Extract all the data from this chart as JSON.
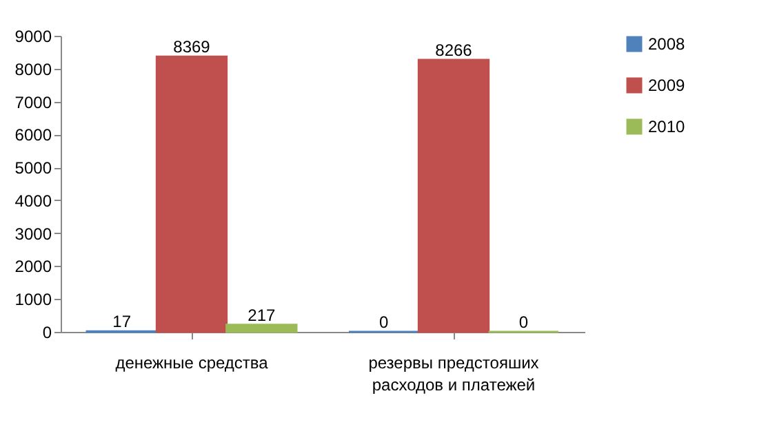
{
  "chart_data": {
    "type": "bar",
    "categories": [
      "денежные средства",
      "резервы предстояших расходов и платежей"
    ],
    "series": [
      {
        "name": "2008",
        "color": "#4f81bd",
        "values": [
          17,
          0
        ]
      },
      {
        "name": "2009",
        "color": "#c0504d",
        "values": [
          8369,
          8266
        ]
      },
      {
        "name": "2010",
        "color": "#9bbb59",
        "values": [
          217,
          0
        ]
      }
    ],
    "ylim": [
      0,
      9000
    ],
    "yticks": [
      0,
      1000,
      2000,
      3000,
      4000,
      5000,
      6000,
      7000,
      8000,
      9000
    ],
    "grid": false,
    "legend": "right",
    "data_labels": true
  }
}
